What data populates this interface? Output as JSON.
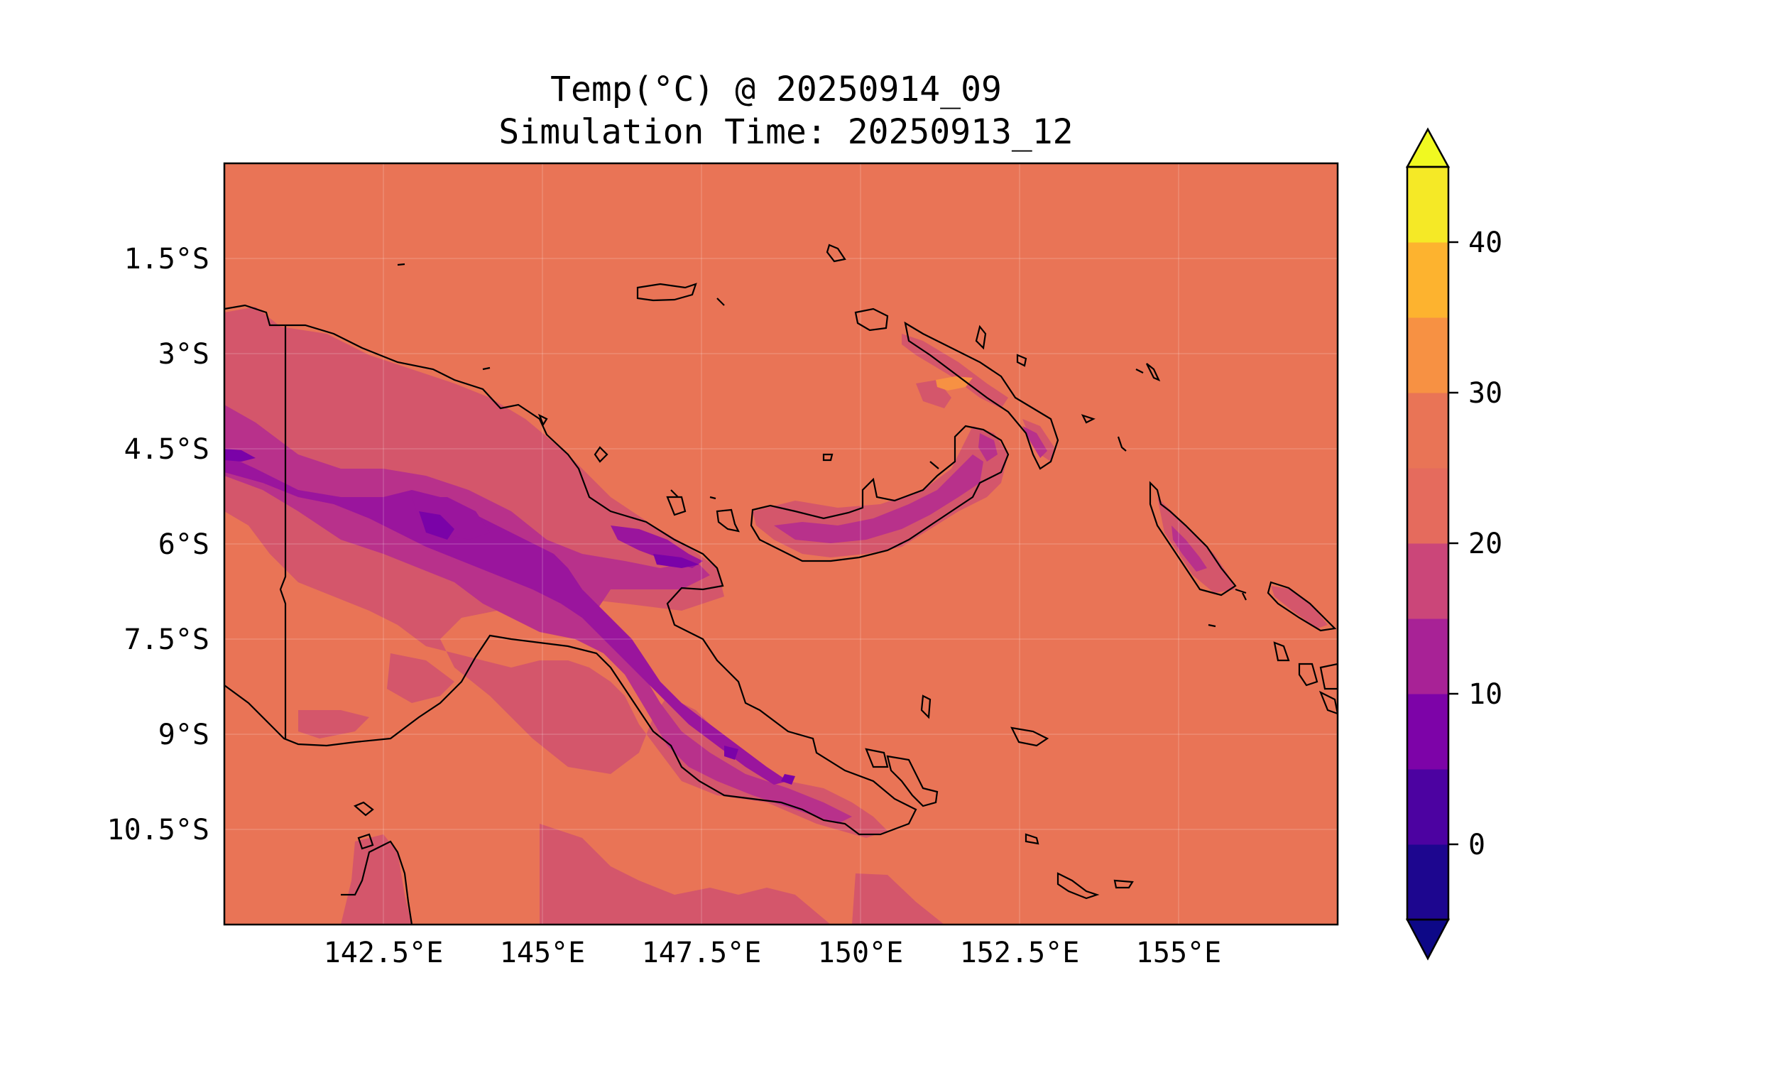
{
  "title": {
    "line1": "Temp(°C) @ 20250914_09",
    "line2": "Simulation Time: 20250913_12"
  },
  "map": {
    "lon_range": [
      140,
      157.5
    ],
    "lat_range": [
      0,
      -12
    ],
    "base_color": "#e97456",
    "coastline_color": "#000000",
    "x_tick_labels": [
      "142.5°E",
      "145°E",
      "147.5°E",
      "150°E",
      "152.5°E",
      "155°E"
    ],
    "y_tick_labels": [
      "1.5°S",
      "3°S",
      "4.5°S",
      "6°S",
      "7.5°S",
      "9°S",
      "10.5°S"
    ]
  },
  "colorbar": {
    "tick_labels": [
      "0",
      "10",
      "20",
      "30",
      "40"
    ],
    "levels": [
      -5,
      0,
      5,
      10,
      15,
      20,
      25,
      30,
      35,
      40,
      45
    ],
    "colors": [
      "#1d068f",
      "#4c02a1",
      "#7d03a8",
      "#a82296",
      "#cb4679",
      "#e56b5d",
      "#e97456",
      "#f79143",
      "#fdb32f",
      "#f5e926"
    ],
    "extend_low_color": "#0d0887",
    "extend_high_color": "#f0f921"
  },
  "chart_data": {
    "type": "heatmap",
    "variable": "Temp(°C)",
    "color_scale": "plasma",
    "levels": [
      -5,
      0,
      5,
      10,
      15,
      20,
      25,
      30,
      35,
      40,
      45
    ],
    "xlim": [
      140,
      157.5
    ],
    "ylim": [
      -12,
      0
    ],
    "x_ticks": [
      142.5,
      145,
      147.5,
      150,
      152.5,
      155
    ],
    "y_ticks": [
      -1.5,
      -3,
      -4.5,
      -6,
      -7.5,
      -9,
      -10.5
    ],
    "background_level": "25-30",
    "grid": true
  }
}
